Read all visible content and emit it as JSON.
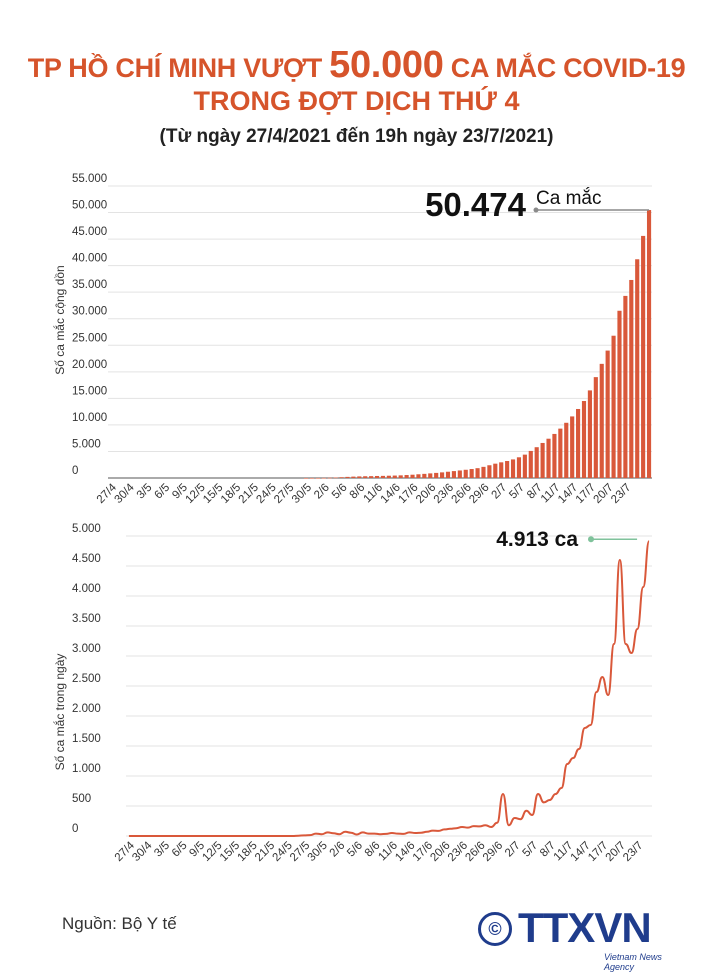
{
  "header": {
    "title_part1": "TP HỒ CHÍ MINH VƯỢT ",
    "title_big": "50.000",
    "title_part2": " CA MẮC COVID-19",
    "title_line2": "TRONG ĐỢT DỊCH THỨ 4",
    "subtitle": "(Từ  ngày 27/4/2021 đến 19h ngày 23/7/2021)"
  },
  "colors": {
    "accent": "#d6542b",
    "bar": "#d9583a",
    "grid": "#e3e3e3",
    "callout_line": "#8a8a8a",
    "callout_line2": "#7fc29b"
  },
  "chart_data": [
    {
      "type": "bar",
      "title": "",
      "xlabel": "",
      "ylabel": "Số ca mắc cộng dồn",
      "ylim": [
        0,
        55000
      ],
      "yticks": [
        0,
        5000,
        10000,
        15000,
        20000,
        25000,
        30000,
        35000,
        40000,
        45000,
        50000,
        55000
      ],
      "ytick_labels": [
        "0",
        "5.000",
        "10.000",
        "15.000",
        "20.000",
        "25.000",
        "30.000",
        "35.000",
        "40.000",
        "45.000",
        "50.000",
        "55.000"
      ],
      "x_tick_labels": [
        "27/4",
        "30/4",
        "3/5",
        "6/5",
        "9/5",
        "12/5",
        "15/5",
        "18/5",
        "21/5",
        "24/5",
        "27/5",
        "30/5",
        "2/6",
        "5/6",
        "8/6",
        "11/6",
        "14/6",
        "17/6",
        "20/6",
        "23/6",
        "26/6",
        "29/6",
        "2/7",
        "5/7",
        "8/7",
        "11/7",
        "14/7",
        "17/7",
        "20/7",
        "23/7"
      ],
      "values": [
        0,
        0,
        0,
        0,
        0,
        0,
        0,
        0,
        0,
        0,
        0,
        0,
        0,
        0,
        0,
        0,
        0,
        0,
        0,
        0,
        0,
        0,
        0,
        0,
        0,
        0,
        0,
        0,
        0,
        0,
        0,
        0,
        0,
        2,
        5,
        10,
        20,
        45,
        90,
        150,
        210,
        260,
        300,
        330,
        350,
        380,
        400,
        430,
        460,
        500,
        560,
        620,
        700,
        780,
        870,
        960,
        1060,
        1180,
        1300,
        1420,
        1550,
        1690,
        1850,
        2100,
        2400,
        2700,
        2950,
        3200,
        3500,
        3900,
        4400,
        5100,
        5800,
        6600,
        7400,
        8300,
        9300,
        10400,
        11600,
        13000,
        14500,
        16500,
        19000,
        21500,
        24000,
        26800,
        31500,
        34300,
        37300,
        41200,
        45600,
        50474
      ],
      "callout": {
        "value_label": "50.474",
        "unit": "Ca mắc"
      }
    },
    {
      "type": "line",
      "title": "",
      "xlabel": "",
      "ylabel": "Số ca mắc trong ngày",
      "ylim": [
        0,
        5000
      ],
      "yticks": [
        0,
        500,
        1000,
        1500,
        2000,
        2500,
        3000,
        3500,
        4000,
        4500,
        5000
      ],
      "ytick_labels": [
        "0",
        "500",
        "1.000",
        "1.500",
        "2.000",
        "2.500",
        "3.000",
        "3.500",
        "4.000",
        "4.500",
        "5.000"
      ],
      "x_tick_labels": [
        "27/4",
        "30/4",
        "3/5",
        "6/5",
        "9/5",
        "12/5",
        "15/5",
        "18/5",
        "21/5",
        "24/5",
        "27/5",
        "30/5",
        "2/6",
        "5/6",
        "8/6",
        "11/6",
        "14/6",
        "17/6",
        "20/6",
        "23/6",
        "26/6",
        "29/6",
        "2/7",
        "5/7",
        "8/7",
        "11/7",
        "14/7",
        "17/7",
        "20/7",
        "23/7"
      ],
      "values": [
        0,
        0,
        0,
        0,
        0,
        0,
        0,
        0,
        0,
        0,
        0,
        0,
        0,
        0,
        0,
        0,
        0,
        0,
        0,
        0,
        0,
        0,
        0,
        0,
        0,
        0,
        0,
        0,
        0,
        5,
        10,
        15,
        40,
        30,
        60,
        45,
        30,
        70,
        55,
        25,
        60,
        40,
        40,
        30,
        35,
        50,
        40,
        35,
        60,
        50,
        55,
        70,
        90,
        85,
        110,
        120,
        130,
        150,
        140,
        165,
        160,
        180,
        150,
        220,
        700,
        180,
        300,
        280,
        420,
        350,
        700,
        560,
        600,
        700,
        800,
        1200,
        1300,
        1450,
        1800,
        1850,
        2400,
        2650,
        2350,
        3200,
        4600,
        3200,
        3050,
        3450,
        4150,
        4913
      ],
      "callout": {
        "value_label": "4.913 ca"
      }
    }
  ],
  "footer": {
    "source": "Nguồn: Bộ Y tế",
    "logo_copyright": "©",
    "logo_text": "TTXVN",
    "logo_agency": "Vietnam News Agency"
  }
}
